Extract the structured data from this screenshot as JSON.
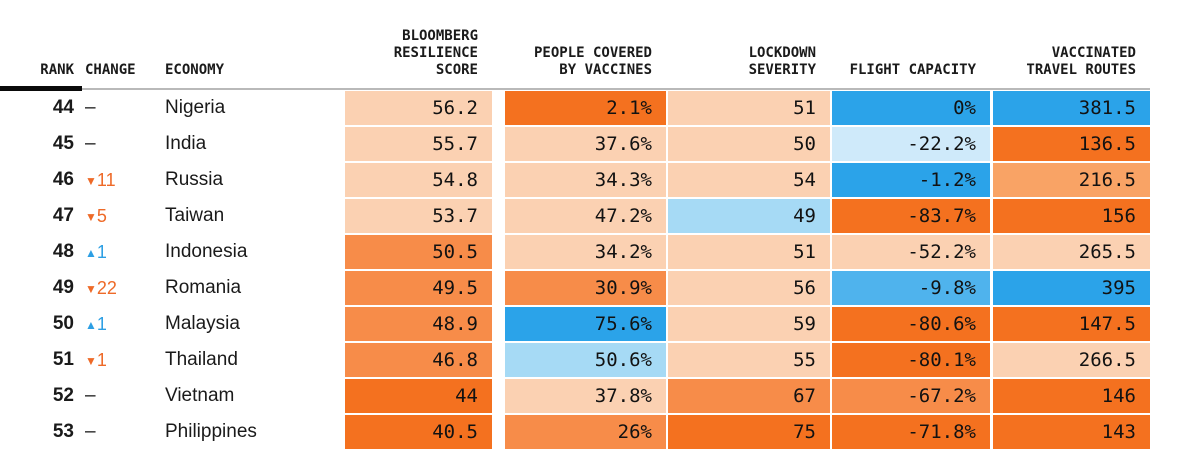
{
  "palette": {
    "peach": "#fbd1b2",
    "orange_mid_light": "#f9a365",
    "orange_mid": "#f78c49",
    "orange_dark": "#f4711f",
    "blue_strong": "#2ba3e9",
    "blue_mid": "#4fb3ed",
    "blue_light": "#a6daf5",
    "blue_pale": "#cfeafa",
    "change_down": "#ee6a28",
    "change_up": "#2d9fe4",
    "rule_black": "#0a0a0a",
    "rule_gray": "#b9b9b9"
  },
  "header": {
    "rank_label": "RANK",
    "change_label": "CHANGE",
    "economy_label": "ECONOMY",
    "score_lines": [
      "BLOOMBERG",
      "RESILIENCE",
      "SCORE"
    ],
    "vaccines_lines": [
      "PEOPLE COVERED",
      "BY VACCINES"
    ],
    "lockdown_lines": [
      "LOCKDOWN",
      "SEVERITY"
    ],
    "flight_lines": [
      "FLIGHT CAPACITY"
    ],
    "travel_lines": [
      "VACCINATED",
      "TRAVEL ROUTES"
    ]
  },
  "rows": [
    {
      "rank": "44",
      "change": {
        "dir": "none",
        "text": "–"
      },
      "economy": "Nigeria",
      "cells": {
        "score": {
          "value": "56.2",
          "color": "peach"
        },
        "vaccines": {
          "value": "2.1%",
          "color": "orange_dark"
        },
        "lockdown": {
          "value": "51",
          "color": "peach"
        },
        "flight": {
          "value": "0%",
          "color": "blue_strong"
        },
        "travel": {
          "value": "381.5",
          "color": "blue_strong"
        }
      }
    },
    {
      "rank": "45",
      "change": {
        "dir": "none",
        "text": "–"
      },
      "economy": "India",
      "cells": {
        "score": {
          "value": "55.7",
          "color": "peach"
        },
        "vaccines": {
          "value": "37.6%",
          "color": "peach"
        },
        "lockdown": {
          "value": "50",
          "color": "peach"
        },
        "flight": {
          "value": "-22.2%",
          "color": "blue_pale"
        },
        "travel": {
          "value": "136.5",
          "color": "orange_dark"
        }
      }
    },
    {
      "rank": "46",
      "change": {
        "dir": "down",
        "text": "11"
      },
      "economy": "Russia",
      "cells": {
        "score": {
          "value": "54.8",
          "color": "peach"
        },
        "vaccines": {
          "value": "34.3%",
          "color": "peach"
        },
        "lockdown": {
          "value": "54",
          "color": "peach"
        },
        "flight": {
          "value": "-1.2%",
          "color": "blue_strong"
        },
        "travel": {
          "value": "216.5",
          "color": "orange_mid_light"
        }
      }
    },
    {
      "rank": "47",
      "change": {
        "dir": "down",
        "text": "5"
      },
      "economy": "Taiwan",
      "cells": {
        "score": {
          "value": "53.7",
          "color": "peach"
        },
        "vaccines": {
          "value": "47.2%",
          "color": "peach"
        },
        "lockdown": {
          "value": "49",
          "color": "blue_light"
        },
        "flight": {
          "value": "-83.7%",
          "color": "orange_dark"
        },
        "travel": {
          "value": "156",
          "color": "orange_dark"
        }
      }
    },
    {
      "rank": "48",
      "change": {
        "dir": "up",
        "text": "1"
      },
      "economy": "Indonesia",
      "cells": {
        "score": {
          "value": "50.5",
          "color": "orange_mid"
        },
        "vaccines": {
          "value": "34.2%",
          "color": "peach"
        },
        "lockdown": {
          "value": "51",
          "color": "peach"
        },
        "flight": {
          "value": "-52.2%",
          "color": "peach"
        },
        "travel": {
          "value": "265.5",
          "color": "peach"
        }
      }
    },
    {
      "rank": "49",
      "change": {
        "dir": "down",
        "text": "22"
      },
      "economy": "Romania",
      "cells": {
        "score": {
          "value": "49.5",
          "color": "orange_mid"
        },
        "vaccines": {
          "value": "30.9%",
          "color": "orange_mid"
        },
        "lockdown": {
          "value": "56",
          "color": "peach"
        },
        "flight": {
          "value": "-9.8%",
          "color": "blue_mid"
        },
        "travel": {
          "value": "395",
          "color": "blue_strong"
        }
      }
    },
    {
      "rank": "50",
      "change": {
        "dir": "up",
        "text": "1"
      },
      "economy": "Malaysia",
      "cells": {
        "score": {
          "value": "48.9",
          "color": "orange_mid"
        },
        "vaccines": {
          "value": "75.6%",
          "color": "blue_strong"
        },
        "lockdown": {
          "value": "59",
          "color": "peach"
        },
        "flight": {
          "value": "-80.6%",
          "color": "orange_dark"
        },
        "travel": {
          "value": "147.5",
          "color": "orange_dark"
        }
      }
    },
    {
      "rank": "51",
      "change": {
        "dir": "down",
        "text": "1"
      },
      "economy": "Thailand",
      "cells": {
        "score": {
          "value": "46.8",
          "color": "orange_mid"
        },
        "vaccines": {
          "value": "50.6%",
          "color": "blue_light"
        },
        "lockdown": {
          "value": "55",
          "color": "peach"
        },
        "flight": {
          "value": "-80.1%",
          "color": "orange_dark"
        },
        "travel": {
          "value": "266.5",
          "color": "peach"
        }
      }
    },
    {
      "rank": "52",
      "change": {
        "dir": "none",
        "text": "–"
      },
      "economy": "Vietnam",
      "cells": {
        "score": {
          "value": "44",
          "color": "orange_dark"
        },
        "vaccines": {
          "value": "37.8%",
          "color": "peach"
        },
        "lockdown": {
          "value": "67",
          "color": "orange_mid"
        },
        "flight": {
          "value": "-67.2%",
          "color": "orange_mid"
        },
        "travel": {
          "value": "146",
          "color": "orange_dark"
        }
      }
    },
    {
      "rank": "53",
      "change": {
        "dir": "none",
        "text": "–"
      },
      "economy": "Philippines",
      "cells": {
        "score": {
          "value": "40.5",
          "color": "orange_dark"
        },
        "vaccines": {
          "value": "26%",
          "color": "orange_mid"
        },
        "lockdown": {
          "value": "75",
          "color": "orange_dark"
        },
        "flight": {
          "value": "-71.8%",
          "color": "orange_dark"
        },
        "travel": {
          "value": "143",
          "color": "orange_dark"
        }
      }
    }
  ],
  "chart_data": {
    "type": "table",
    "columns": [
      "RANK",
      "CHANGE",
      "ECONOMY",
      "BLOOMBERG RESILIENCE SCORE",
      "PEOPLE COVERED BY VACCINES",
      "LOCKDOWN SEVERITY",
      "FLIGHT CAPACITY",
      "VACCINATED TRAVEL ROUTES"
    ],
    "rows": [
      [
        44,
        0,
        "Nigeria",
        56.2,
        "2.1%",
        51,
        "0%",
        381.5
      ],
      [
        45,
        0,
        "India",
        55.7,
        "37.6%",
        50,
        "-22.2%",
        136.5
      ],
      [
        46,
        -11,
        "Russia",
        54.8,
        "34.3%",
        54,
        "-1.2%",
        216.5
      ],
      [
        47,
        -5,
        "Taiwan",
        53.7,
        "47.2%",
        49,
        "-83.7%",
        156
      ],
      [
        48,
        1,
        "Indonesia",
        50.5,
        "34.2%",
        51,
        "-52.2%",
        265.5
      ],
      [
        49,
        -22,
        "Romania",
        49.5,
        "30.9%",
        56,
        "-9.8%",
        395
      ],
      [
        50,
        1,
        "Malaysia",
        48.9,
        "75.6%",
        59,
        "-80.6%",
        147.5
      ],
      [
        51,
        -1,
        "Thailand",
        46.8,
        "50.6%",
        55,
        "-80.1%",
        266.5
      ],
      [
        52,
        0,
        "Vietnam",
        44,
        "37.8%",
        67,
        "-67.2%",
        146
      ],
      [
        53,
        0,
        "Philippines",
        40.5,
        "26%",
        75,
        "-71.8%",
        143
      ]
    ],
    "legend_notes": "cell background encodes value: orange = worse, blue = better"
  }
}
